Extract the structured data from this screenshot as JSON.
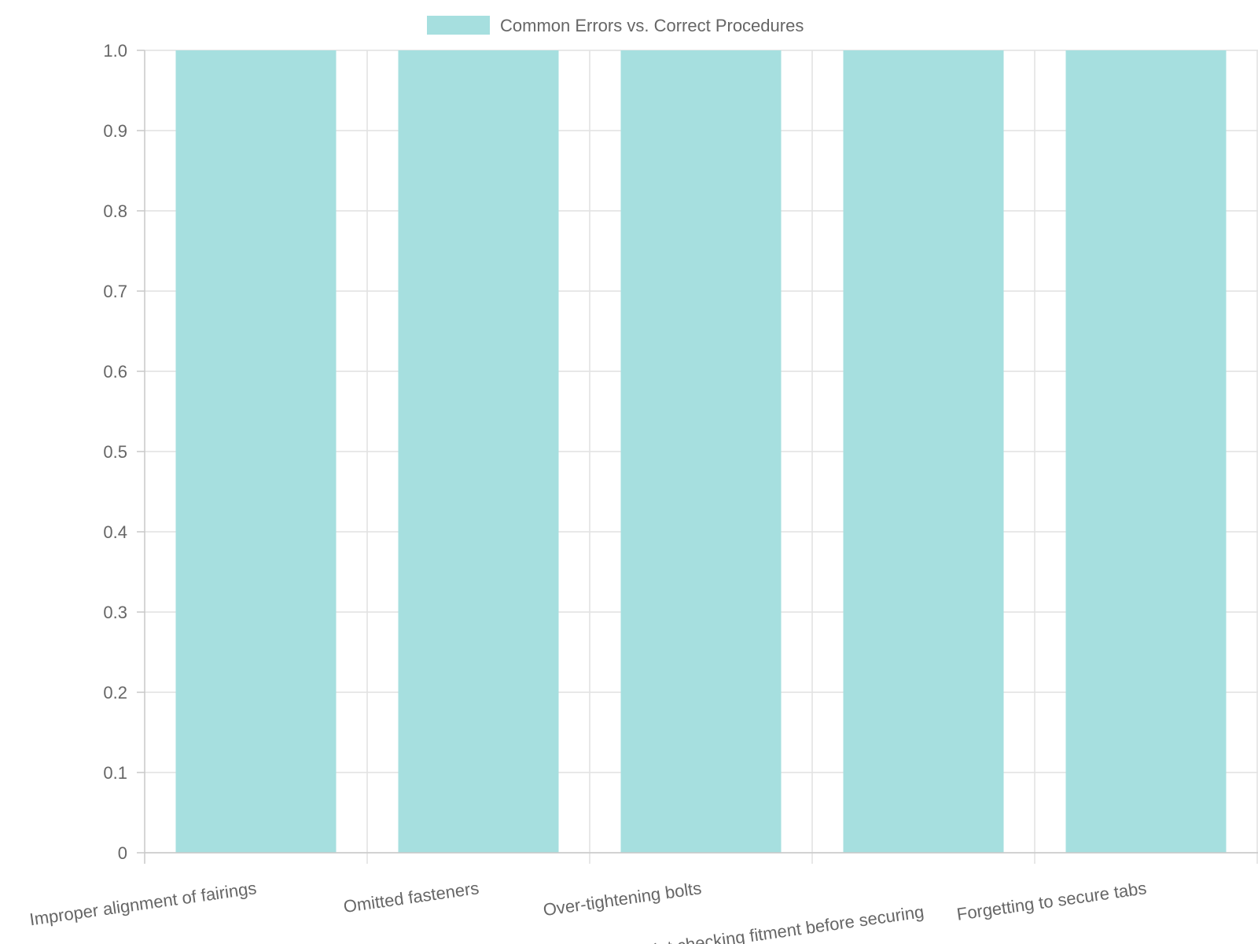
{
  "chart_data": {
    "type": "bar",
    "categories": [
      "Improper alignment of fairings",
      "Omitted fasteners",
      "Over-tightening bolts",
      "Not checking fitment before securing",
      "Forgetting to secure tabs"
    ],
    "series": [
      {
        "name": "Common Errors vs. Correct Procedures",
        "values": [
          1,
          1,
          1,
          1,
          1
        ],
        "color": "#a6dfdf"
      }
    ],
    "ylim": [
      0,
      1.0
    ],
    "yticks": [
      "0",
      "0.1",
      "0.2",
      "0.3",
      "0.4",
      "0.5",
      "0.6",
      "0.7",
      "0.8",
      "0.9",
      "1.0"
    ],
    "grid": true,
    "legend": "top-center",
    "title": "",
    "xlabel": "",
    "ylabel": ""
  }
}
